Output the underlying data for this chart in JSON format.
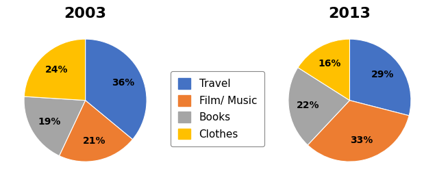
{
  "title_2003": "2003",
  "title_2013": "2013",
  "categories": [
    "Travel",
    "Film/ Music",
    "Books",
    "Clothes"
  ],
  "values_2003": [
    36,
    21,
    19,
    24
  ],
  "values_2013": [
    29,
    33,
    22,
    16
  ],
  "colors": [
    "#4472C4",
    "#ED7D31",
    "#A5A5A5",
    "#FFC000"
  ],
  "title_fontsize": 16,
  "label_fontsize": 10,
  "legend_fontsize": 11,
  "background_color": "#FFFFFF",
  "startangle_2003": 90,
  "startangle_2013": 90
}
